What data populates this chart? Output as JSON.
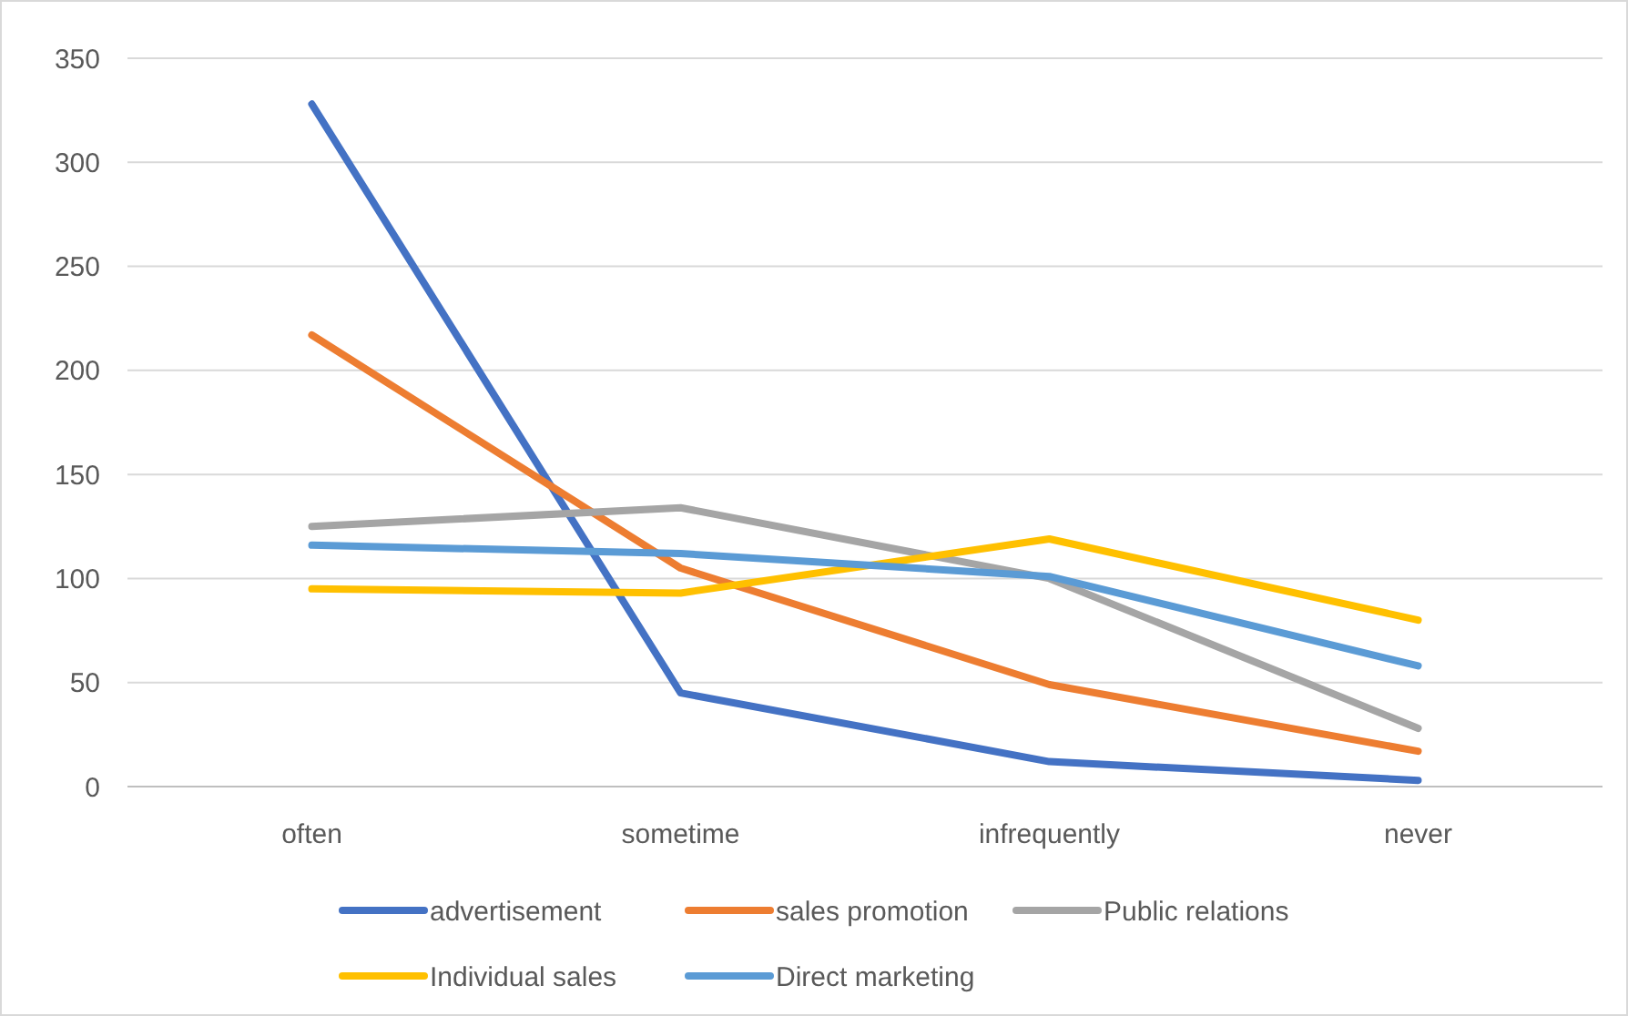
{
  "chart_data": {
    "type": "line",
    "categories": [
      "often",
      "sometime",
      "infrequently",
      "never"
    ],
    "series": [
      {
        "name": "advertisement",
        "color": "#4472c4",
        "values": [
          328,
          45,
          12,
          3
        ]
      },
      {
        "name": "sales promotion",
        "color": "#ed7d31",
        "values": [
          217,
          105,
          49,
          17
        ]
      },
      {
        "name": "Public relations",
        "color": "#a5a5a5",
        "values": [
          125,
          134,
          100,
          28
        ]
      },
      {
        "name": "Individual sales",
        "color": "#ffc000",
        "values": [
          95,
          93,
          119,
          80
        ]
      },
      {
        "name": "Direct marketing",
        "color": "#5b9bd5",
        "values": [
          116,
          112,
          101,
          58
        ]
      }
    ],
    "ylim": [
      0,
      350
    ],
    "yticks": [
      0,
      50,
      100,
      150,
      200,
      250,
      300,
      350
    ],
    "grid": "y",
    "legend": "bottom",
    "marker": "none",
    "line_style": "solid"
  }
}
